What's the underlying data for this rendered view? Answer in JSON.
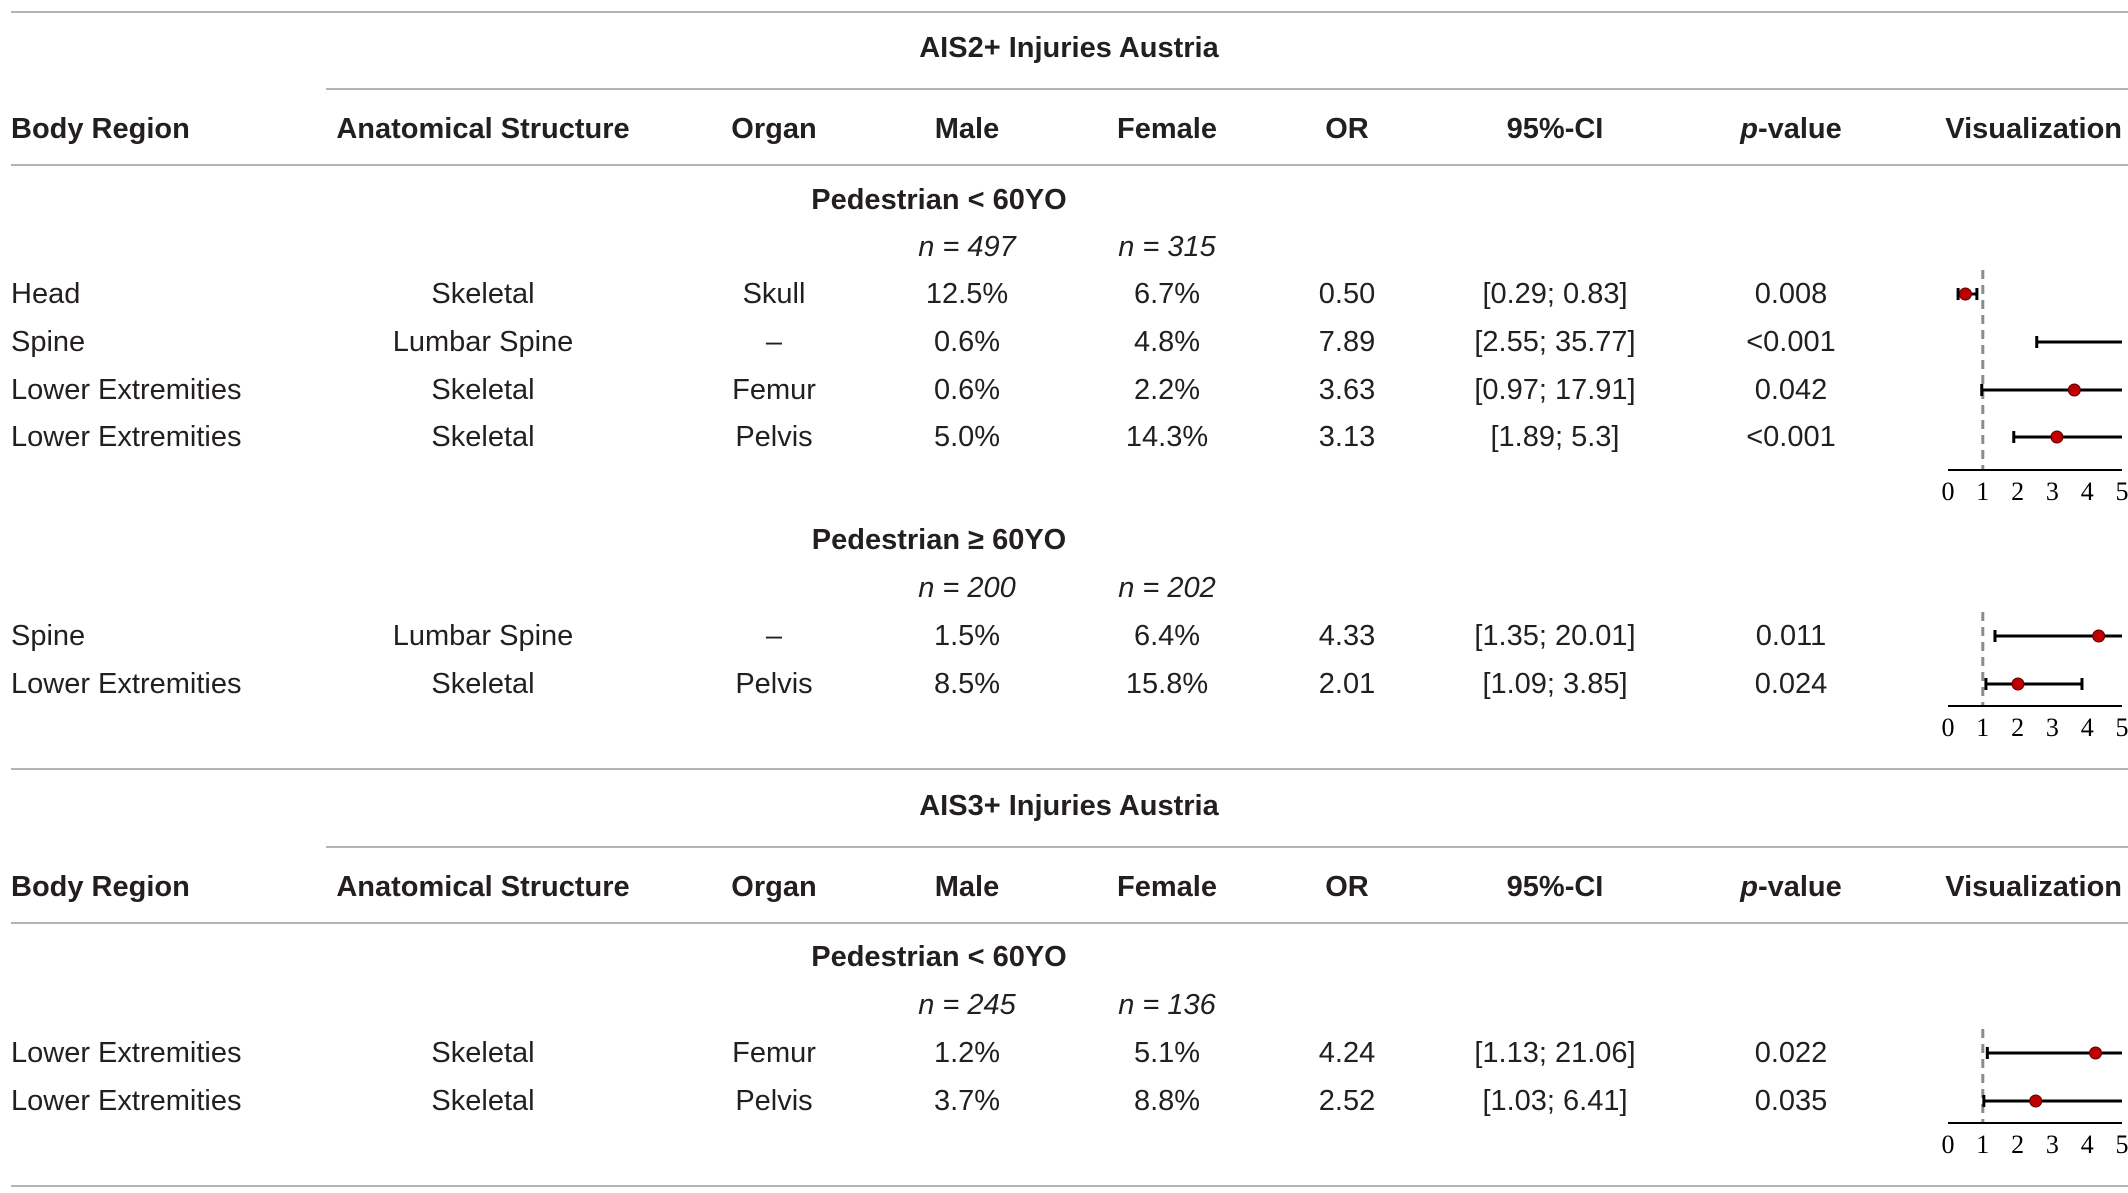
{
  "columns": {
    "body_region": "Body Region",
    "anatomical_structure": "Anatomical Structure",
    "organ": "Organ",
    "male": "Male",
    "female": "Female",
    "or": "OR",
    "ci": "95%-CI",
    "p_value_italic": "p",
    "p_value_rest": "-value",
    "visualization": "Visualization"
  },
  "axis_ticks": [
    "0",
    "1",
    "2",
    "3",
    "4",
    "5"
  ],
  "colors": {
    "point": "#c00000",
    "bar": "#000000",
    "reference_line": "#8c8c8c",
    "rule": "#b4b4b4"
  },
  "blocks": [
    {
      "title": "AIS2+ Injuries Austria",
      "groups": [
        {
          "label": "Pedestrian < 60YO",
          "n_male": "n = 497",
          "n_female": "n = 315",
          "rows": [
            {
              "body_region": "Head",
              "structure": "Skeletal",
              "organ": "Skull",
              "male": "12.5%",
              "female": "6.7%",
              "or": "0.50",
              "ci": "[0.29; 0.83]",
              "p": "0.008",
              "or_value": 0.5,
              "ci_low": 0.29,
              "ci_high": 0.83
            },
            {
              "body_region": "Spine",
              "structure": "Lumbar Spine",
              "organ": "–",
              "male": "0.6%",
              "female": "4.8%",
              "or": "7.89",
              "ci": "[2.55; 35.77]",
              "p": "<0.001",
              "or_value": 7.89,
              "ci_low": 2.55,
              "ci_high": 35.77
            },
            {
              "body_region": "Lower Extremities",
              "structure": "Skeletal",
              "organ": "Femur",
              "male": "0.6%",
              "female": "2.2%",
              "or": "3.63",
              "ci": "[0.97; 17.91]",
              "p": "0.042",
              "or_value": 3.63,
              "ci_low": 0.97,
              "ci_high": 17.91
            },
            {
              "body_region": "Lower Extremities",
              "structure": "Skeletal",
              "organ": "Pelvis",
              "male": "5.0%",
              "female": "14.3%",
              "or": "3.13",
              "ci": "[1.89; 5.3]",
              "p": "<0.001",
              "or_value": 3.13,
              "ci_low": 1.89,
              "ci_high": 5.3
            }
          ]
        },
        {
          "label": "Pedestrian ≥ 60YO",
          "n_male": "n = 200",
          "n_female": "n = 202",
          "rows": [
            {
              "body_region": "Spine",
              "structure": "Lumbar Spine",
              "organ": "–",
              "male": "1.5%",
              "female": "6.4%",
              "or": "4.33",
              "ci": "[1.35; 20.01]",
              "p": "0.011",
              "or_value": 4.33,
              "ci_low": 1.35,
              "ci_high": 20.01
            },
            {
              "body_region": "Lower Extremities",
              "structure": "Skeletal",
              "organ": "Pelvis",
              "male": "8.5%",
              "female": "15.8%",
              "or": "2.01",
              "ci": "[1.09; 3.85]",
              "p": "0.024",
              "or_value": 2.01,
              "ci_low": 1.09,
              "ci_high": 3.85
            }
          ]
        }
      ]
    },
    {
      "title": "AIS3+ Injuries Austria",
      "groups": [
        {
          "label": "Pedestrian < 60YO",
          "n_male": "n = 245",
          "n_female": "n = 136",
          "rows": [
            {
              "body_region": "Lower Extremities",
              "structure": "Skeletal",
              "organ": "Femur",
              "male": "1.2%",
              "female": "5.1%",
              "or": "4.24",
              "ci": "[1.13; 21.06]",
              "p": "0.022",
              "or_value": 4.24,
              "ci_low": 1.13,
              "ci_high": 21.06
            },
            {
              "body_region": "Lower Extremities",
              "structure": "Skeletal",
              "organ": "Pelvis",
              "male": "3.7%",
              "female": "8.8%",
              "or": "2.52",
              "ci": "[1.03; 6.41]",
              "p": "0.035",
              "or_value": 2.52,
              "ci_low": 1.03,
              "ci_high": 6.41
            }
          ]
        }
      ]
    }
  ]
}
